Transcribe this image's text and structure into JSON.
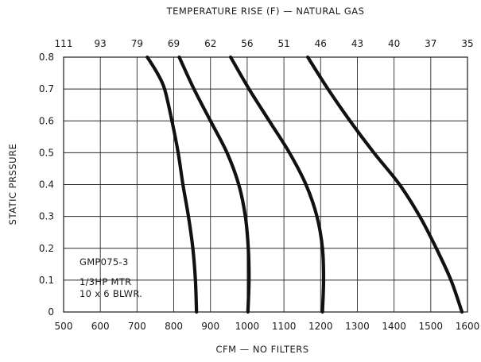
{
  "chart_data": {
    "type": "line",
    "title": "TEMPERATURE RISE (F) — NATURAL GAS",
    "xlabel": "CFM  —  NO FILTERS",
    "ylabel": "STATIC PRSSURE",
    "xlim": [
      500,
      1600
    ],
    "ylim": [
      0,
      0.8
    ],
    "grid": true,
    "x_ticks": [
      500,
      600,
      700,
      800,
      900,
      1000,
      1100,
      1200,
      1300,
      1400,
      1500,
      1600
    ],
    "x_tick_labels": [
      "500",
      "600",
      "700",
      "800",
      "900",
      "1000",
      "1100",
      "1200",
      "1300",
      "1400",
      "1500",
      "1600"
    ],
    "y_ticks": [
      0,
      0.1,
      0.2,
      0.3,
      0.4,
      0.5,
      0.6,
      0.7,
      0.8
    ],
    "y_tick_labels": [
      "0",
      "0.1",
      "0.2",
      "0.3",
      "0.4",
      "0.5",
      "0.6",
      "0.7",
      "0.8"
    ],
    "top_axis": {
      "ticks": [
        500,
        600,
        700,
        800,
        900,
        1000,
        1100,
        1200,
        1300,
        1400,
        1500,
        1600
      ],
      "labels": [
        "111",
        "93",
        "79",
        "69",
        "62",
        "56",
        "51",
        "46",
        "43",
        "40",
        "37",
        "35"
      ]
    },
    "annotations": [
      "GMP075-3",
      "1/3HP MTR",
      "10 x 6 BLWR."
    ],
    "series": [
      {
        "x": [
          862,
          859,
          852,
          840,
          825,
          812,
          795,
          775,
          755,
          728
        ],
        "y": [
          0,
          0.1,
          0.2,
          0.3,
          0.4,
          0.5,
          0.6,
          0.7,
          0.75,
          0.8
        ]
      },
      {
        "x": [
          1002,
          1005,
          1003,
          995,
          977,
          945,
          900,
          855,
          815
        ],
        "y": [
          0,
          0.1,
          0.2,
          0.3,
          0.4,
          0.5,
          0.6,
          0.7,
          0.8
        ]
      },
      {
        "x": [
          1205,
          1208,
          1205,
          1190,
          1160,
          1115,
          1060,
          1005,
          955
        ],
        "y": [
          0,
          0.1,
          0.2,
          0.3,
          0.4,
          0.5,
          0.6,
          0.7,
          0.8
        ]
      },
      {
        "x": [
          1585,
          1555,
          1515,
          1470,
          1415,
          1345,
          1280,
          1220,
          1165
        ],
        "y": [
          0,
          0.1,
          0.2,
          0.3,
          0.4,
          0.5,
          0.6,
          0.7,
          0.8
        ]
      }
    ]
  }
}
